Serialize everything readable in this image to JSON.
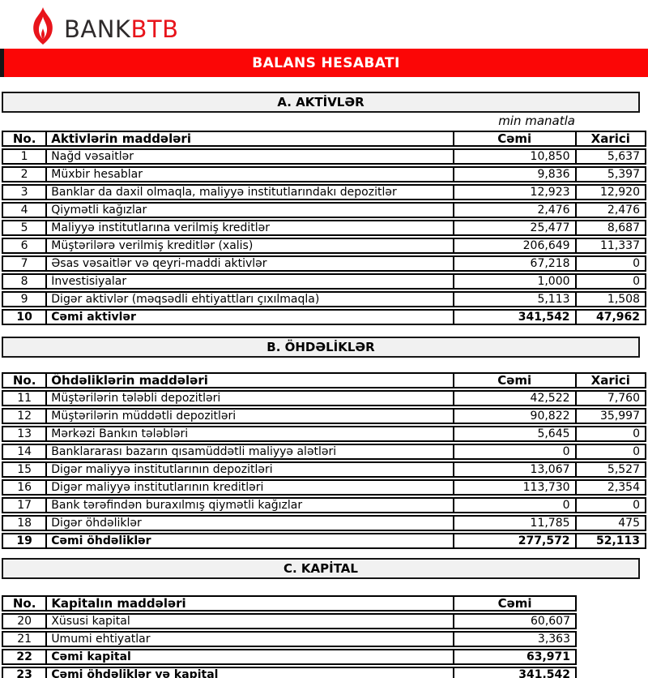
{
  "logo": {
    "bank_text": "BANK",
    "btb_text": "BTB",
    "bank_color": "#2e2a2b",
    "btb_color": "#e8141b",
    "flame_color": "#e8141b"
  },
  "banner": {
    "title": "BALANS HESABATI",
    "bg_color": "#fb0606",
    "text_color": "#ffffff"
  },
  "unit_note": "min manatla",
  "columns": {
    "no": "No.",
    "total": "Cəmi",
    "foreign": "Xarici"
  },
  "sections": [
    {
      "title": "A. AKTİVLƏR",
      "items_header": "Aktivlərin maddələri",
      "has_foreign": true,
      "rows": [
        {
          "no": "1",
          "label": "Nağd vəsaitlər",
          "total": "10,850",
          "foreign": "5,637",
          "bold": false
        },
        {
          "no": "2",
          "label": "Müxbir hesablar",
          "total": "9,836",
          "foreign": "5,397",
          "bold": false
        },
        {
          "no": "3",
          "label": "Banklar da daxil olmaqla, maliyyə institutlarındakı depozitlər",
          "total": "12,923",
          "foreign": "12,920",
          "bold": false
        },
        {
          "no": "4",
          "label": "Qiymətli kağızlar",
          "total": "2,476",
          "foreign": "2,476",
          "bold": false
        },
        {
          "no": "5",
          "label": "Maliyyə institutlarına verilmiş kreditlər",
          "total": "25,477",
          "foreign": "8,687",
          "bold": false
        },
        {
          "no": "6",
          "label": "Müştərilərə verilmiş kreditlər (xalis)",
          "total": "206,649",
          "foreign": "11,337",
          "bold": false
        },
        {
          "no": "7",
          "label": "Əsas vəsaitlər və qeyri-maddi aktivlər",
          "total": "67,218",
          "foreign": "0",
          "bold": false
        },
        {
          "no": "8",
          "label": "İnvestisiyalar",
          "total": "1,000",
          "foreign": "0",
          "bold": false
        },
        {
          "no": "9",
          "label": "Digər aktivlər (məqsədli ehtiyattları çıxılmaqla)",
          "total": "5,113",
          "foreign": "1,508",
          "bold": false
        },
        {
          "no": "10",
          "label": "Cəmi aktivlər",
          "total": "341,542",
          "foreign": "47,962",
          "bold": true
        }
      ]
    },
    {
      "title": "B. ÖHDƏLİKLƏR",
      "items_header": "Öhdəliklərin maddələri",
      "has_foreign": true,
      "rows": [
        {
          "no": "11",
          "label": "Müştərilərin tələbli depozitləri",
          "total": "42,522",
          "foreign": "7,760",
          "bold": false
        },
        {
          "no": "12",
          "label": "Müştərilərin müddətli depozitləri",
          "total": "90,822",
          "foreign": "35,997",
          "bold": false
        },
        {
          "no": "13",
          "label": "Mərkəzi Bankın tələbləri",
          "total": "5,645",
          "foreign": "0",
          "bold": false
        },
        {
          "no": "14",
          "label": "Banklararası bazarın qısamüddətli maliyyə alətləri",
          "total": "0",
          "foreign": "0",
          "bold": false
        },
        {
          "no": "15",
          "label": "Digər maliyyə institutlarının depozitləri",
          "total": "13,067",
          "foreign": "5,527",
          "bold": false
        },
        {
          "no": "16",
          "label": "Digər maliyyə institutlarının kreditləri",
          "total": "113,730",
          "foreign": "2,354",
          "bold": false
        },
        {
          "no": "17",
          "label": "Bank tərəfindən buraxılmış qiymətli kağızlar",
          "total": "0",
          "foreign": "0",
          "bold": false
        },
        {
          "no": "18",
          "label": "Digər öhdəliklər",
          "total": "11,785",
          "foreign": "475",
          "bold": false
        },
        {
          "no": "19",
          "label": "Cəmi öhdəliklər",
          "total": "277,572",
          "foreign": "52,113",
          "bold": true
        }
      ]
    },
    {
      "title": "C. KAPİTAL",
      "items_header": "Kapitalın maddələri",
      "has_foreign": false,
      "rows": [
        {
          "no": "20",
          "label": "Xüsusi kapital",
          "total": "60,607",
          "bold": false
        },
        {
          "no": "21",
          "label": "Ümumi ehtiyatlar",
          "total": "3,363",
          "bold": false
        },
        {
          "no": "22",
          "label": "Cəmi kapital",
          "total": "63,971",
          "bold": true
        },
        {
          "no": "23",
          "label": "Cəmi öhdəliklər və kapital",
          "total": "341,542",
          "bold": true
        }
      ]
    }
  ]
}
